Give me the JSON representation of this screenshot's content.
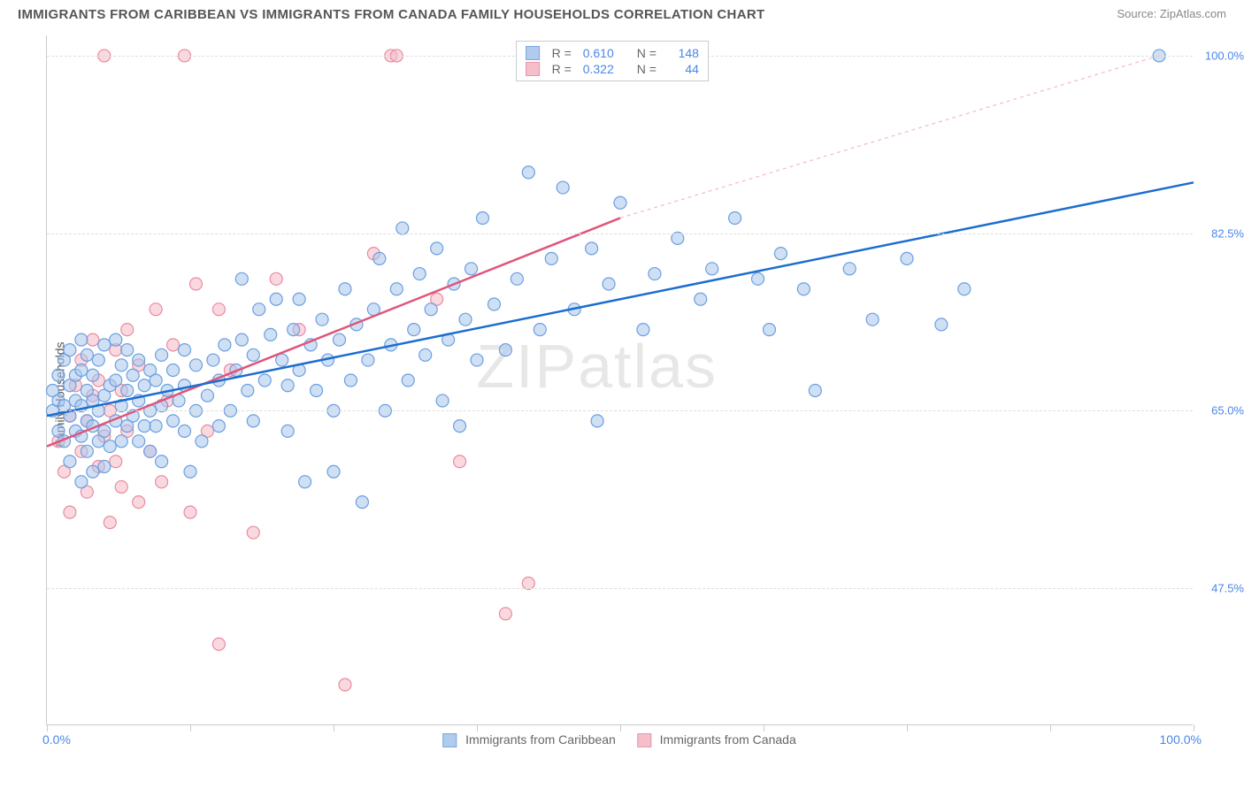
{
  "header": {
    "title": "IMMIGRANTS FROM CARIBBEAN VS IMMIGRANTS FROM CANADA FAMILY HOUSEHOLDS CORRELATION CHART",
    "source": "Source: ZipAtlas.com"
  },
  "chart": {
    "type": "scatter",
    "ylabel": "Family Households",
    "watermark": "ZIPatlas",
    "xlim": [
      0,
      100
    ],
    "ylim": [
      34,
      102
    ],
    "x_ticks": [
      0,
      12.5,
      25,
      37.5,
      50,
      62.5,
      75,
      87.5,
      100
    ],
    "x_min_label": "0.0%",
    "x_max_label": "100.0%",
    "y_gridlines": [
      47.5,
      65.0,
      82.5,
      100.0
    ],
    "y_tick_labels": [
      "47.5%",
      "65.0%",
      "82.5%",
      "100.0%"
    ],
    "background_color": "#ffffff",
    "grid_color": "#dddddd",
    "axis_color": "#cccccc",
    "marker_radius": 7,
    "marker_stroke_width": 1.2,
    "series": [
      {
        "name": "Immigrants from Caribbean",
        "fill": "#a8c6ed",
        "stroke": "#6b9fe0",
        "fill_opacity": 0.55,
        "R": "0.610",
        "N": "148",
        "trend": {
          "x1": 0,
          "y1": 64.5,
          "x2": 100,
          "y2": 87.5,
          "stroke": "#1c6dd0",
          "width": 2.5,
          "dash": ""
        },
        "points": [
          [
            0.5,
            65
          ],
          [
            0.5,
            67
          ],
          [
            1,
            63
          ],
          [
            1,
            66
          ],
          [
            1,
            68.5
          ],
          [
            1.5,
            62
          ],
          [
            1.5,
            65.5
          ],
          [
            1.5,
            70
          ],
          [
            2,
            60
          ],
          [
            2,
            64.5
          ],
          [
            2,
            67.5
          ],
          [
            2,
            71
          ],
          [
            2.5,
            63
          ],
          [
            2.5,
            66
          ],
          [
            2.5,
            68.5
          ],
          [
            3,
            58
          ],
          [
            3,
            62.5
          ],
          [
            3,
            65.5
          ],
          [
            3,
            69
          ],
          [
            3,
            72
          ],
          [
            3.5,
            61
          ],
          [
            3.5,
            64
          ],
          [
            3.5,
            67
          ],
          [
            3.5,
            70.5
          ],
          [
            4,
            59
          ],
          [
            4,
            63.5
          ],
          [
            4,
            66
          ],
          [
            4,
            68.5
          ],
          [
            4.5,
            62
          ],
          [
            4.5,
            65
          ],
          [
            4.5,
            70
          ],
          [
            5,
            59.5
          ],
          [
            5,
            63
          ],
          [
            5,
            66.5
          ],
          [
            5,
            71.5
          ],
          [
            5.5,
            61.5
          ],
          [
            5.5,
            67.5
          ],
          [
            6,
            64
          ],
          [
            6,
            68
          ],
          [
            6,
            72
          ],
          [
            6.5,
            62
          ],
          [
            6.5,
            65.5
          ],
          [
            6.5,
            69.5
          ],
          [
            7,
            63.5
          ],
          [
            7,
            67
          ],
          [
            7,
            71
          ],
          [
            7.5,
            64.5
          ],
          [
            7.5,
            68.5
          ],
          [
            8,
            62
          ],
          [
            8,
            66
          ],
          [
            8,
            70
          ],
          [
            8.5,
            63.5
          ],
          [
            8.5,
            67.5
          ],
          [
            9,
            61
          ],
          [
            9,
            65
          ],
          [
            9,
            69
          ],
          [
            9.5,
            63.5
          ],
          [
            9.5,
            68
          ],
          [
            10,
            60
          ],
          [
            10,
            65.5
          ],
          [
            10,
            70.5
          ],
          [
            10.5,
            67
          ],
          [
            11,
            64
          ],
          [
            11,
            69
          ],
          [
            11.5,
            66
          ],
          [
            12,
            63
          ],
          [
            12,
            67.5
          ],
          [
            12,
            71
          ],
          [
            12.5,
            59
          ],
          [
            13,
            65
          ],
          [
            13,
            69.5
          ],
          [
            13.5,
            62
          ],
          [
            14,
            66.5
          ],
          [
            14.5,
            70
          ],
          [
            15,
            63.5
          ],
          [
            15,
            68
          ],
          [
            15.5,
            71.5
          ],
          [
            16,
            65
          ],
          [
            16.5,
            69
          ],
          [
            17,
            78
          ],
          [
            17,
            72
          ],
          [
            17.5,
            67
          ],
          [
            18,
            64
          ],
          [
            18,
            70.5
          ],
          [
            18.5,
            75
          ],
          [
            19,
            68
          ],
          [
            19.5,
            72.5
          ],
          [
            20,
            76
          ],
          [
            20.5,
            70
          ],
          [
            21,
            63
          ],
          [
            21,
            67.5
          ],
          [
            21.5,
            73
          ],
          [
            22,
            69
          ],
          [
            22,
            76
          ],
          [
            22.5,
            58
          ],
          [
            23,
            71.5
          ],
          [
            23.5,
            67
          ],
          [
            24,
            74
          ],
          [
            24.5,
            70
          ],
          [
            25,
            59
          ],
          [
            25,
            65
          ],
          [
            25.5,
            72
          ],
          [
            26,
            77
          ],
          [
            26.5,
            68
          ],
          [
            27,
            73.5
          ],
          [
            27.5,
            56
          ],
          [
            28,
            70
          ],
          [
            28.5,
            75
          ],
          [
            29,
            80
          ],
          [
            29.5,
            65
          ],
          [
            30,
            71.5
          ],
          [
            30.5,
            77
          ],
          [
            31,
            83
          ],
          [
            31.5,
            68
          ],
          [
            32,
            73
          ],
          [
            32.5,
            78.5
          ],
          [
            33,
            70.5
          ],
          [
            33.5,
            75
          ],
          [
            34,
            81
          ],
          [
            34.5,
            66
          ],
          [
            35,
            72
          ],
          [
            35.5,
            77.5
          ],
          [
            36,
            63.5
          ],
          [
            36.5,
            74
          ],
          [
            37,
            79
          ],
          [
            37.5,
            70
          ],
          [
            38,
            84
          ],
          [
            39,
            75.5
          ],
          [
            40,
            71
          ],
          [
            41,
            78
          ],
          [
            42,
            88.5
          ],
          [
            43,
            73
          ],
          [
            44,
            80
          ],
          [
            45,
            87
          ],
          [
            46,
            75
          ],
          [
            47.5,
            81
          ],
          [
            48,
            64
          ],
          [
            49,
            77.5
          ],
          [
            50,
            85.5
          ],
          [
            52,
            73
          ],
          [
            53,
            78.5
          ],
          [
            55,
            82
          ],
          [
            57,
            76
          ],
          [
            58,
            79
          ],
          [
            60,
            84
          ],
          [
            62,
            78
          ],
          [
            63,
            73
          ],
          [
            64,
            80.5
          ],
          [
            66,
            77
          ],
          [
            67,
            67
          ],
          [
            70,
            79
          ],
          [
            72,
            74
          ],
          [
            75,
            80
          ],
          [
            78,
            73.5
          ],
          [
            80,
            77
          ],
          [
            97,
            100
          ]
        ]
      },
      {
        "name": "Immigrants from Canada",
        "fill": "#f5b8c5",
        "stroke": "#e88ca0",
        "fill_opacity": 0.55,
        "R": "0.322",
        "N": "44",
        "trend": {
          "x1": 0,
          "y1": 61.5,
          "x2": 50,
          "y2": 84,
          "stroke": "#e0557a",
          "width": 2.5,
          "dash": ""
        },
        "trend_ext": {
          "x1": 50,
          "y1": 84,
          "x2": 97,
          "y2": 100,
          "stroke": "#f5b8c5",
          "width": 1.2,
          "dash": "4 4"
        },
        "points": [
          [
            1,
            62
          ],
          [
            1.5,
            59
          ],
          [
            2,
            64.5
          ],
          [
            2,
            55
          ],
          [
            2.5,
            67.5
          ],
          [
            3,
            61
          ],
          [
            3,
            70
          ],
          [
            3.5,
            57
          ],
          [
            3.5,
            64
          ],
          [
            4,
            66.5
          ],
          [
            4,
            72
          ],
          [
            4.5,
            59.5
          ],
          [
            4.5,
            68
          ],
          [
            5,
            62.5
          ],
          [
            5,
            100
          ],
          [
            5.5,
            54
          ],
          [
            5.5,
            65
          ],
          [
            6,
            60
          ],
          [
            6,
            71
          ],
          [
            6.5,
            57.5
          ],
          [
            6.5,
            67
          ],
          [
            7,
            63
          ],
          [
            7,
            73
          ],
          [
            8,
            56
          ],
          [
            8,
            69.5
          ],
          [
            9,
            61
          ],
          [
            9.5,
            75
          ],
          [
            10,
            58
          ],
          [
            10.5,
            66
          ],
          [
            11,
            71.5
          ],
          [
            12,
            100
          ],
          [
            12.5,
            55
          ],
          [
            13,
            77.5
          ],
          [
            14,
            63
          ],
          [
            15,
            42
          ],
          [
            15,
            75
          ],
          [
            16,
            69
          ],
          [
            18,
            53
          ],
          [
            20,
            78
          ],
          [
            22,
            73
          ],
          [
            26,
            38
          ],
          [
            28.5,
            80.5
          ],
          [
            30,
            100
          ],
          [
            30.5,
            100
          ],
          [
            34,
            76
          ],
          [
            36,
            60
          ],
          [
            40,
            45
          ],
          [
            42,
            48
          ]
        ]
      }
    ]
  },
  "legend_bottom": {
    "series1_label": "Immigrants from Caribbean",
    "series2_label": "Immigrants from Canada"
  },
  "legend_top": {
    "r_label": "R =",
    "n_label": "N ="
  }
}
